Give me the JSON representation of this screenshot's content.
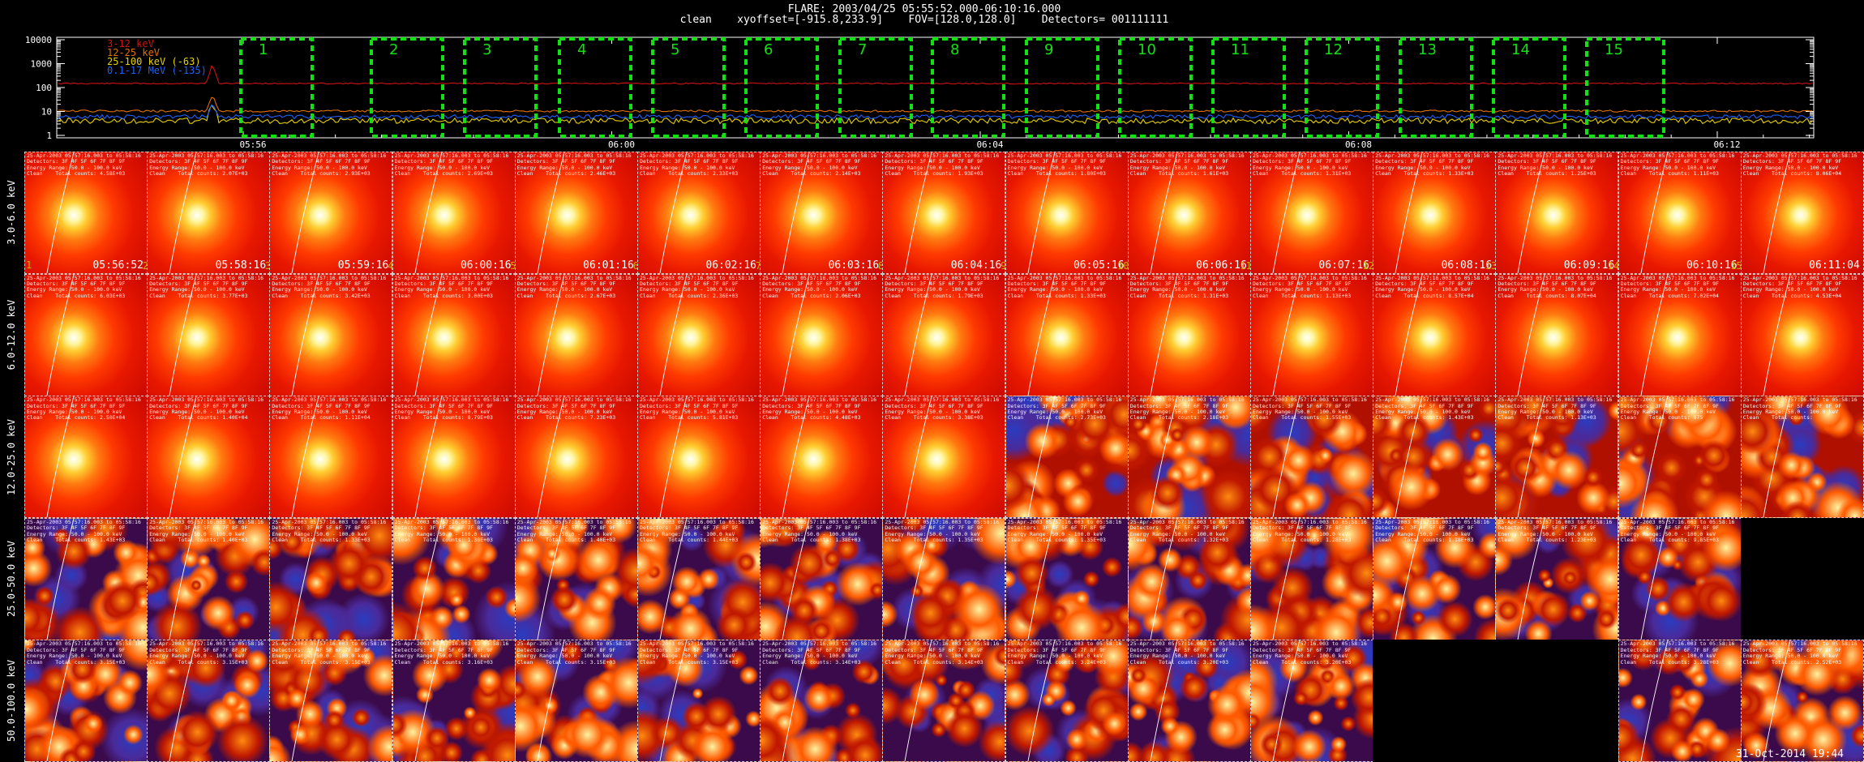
{
  "header": {
    "line1": "FLARE: 2003/04/25 05:55:52.000-06:10:16.000",
    "line2": "clean    xyoffset=[-915.8,233.9]    FOV=[128.0,128.0]    Detectors= 001111111"
  },
  "lightcurve": {
    "y_ticks": [
      "10000",
      "1000",
      "100",
      "10",
      "1"
    ],
    "x_ticks": [
      "05:56",
      "06:00",
      "06:04",
      "06:08",
      "06:12"
    ],
    "legend": [
      {
        "label": "3-12 keV",
        "color": "#d01010"
      },
      {
        "label": "12-25 keV",
        "color": "#e07000"
      },
      {
        "label": "25-100 keV (-63)",
        "color": "#e6d000"
      },
      {
        "label": "0.1-17 MeV (-135)",
        "color": "#2060ff"
      }
    ],
    "interval_labels": [
      "1",
      "2",
      "3",
      "4",
      "5",
      "6",
      "7",
      "8",
      "9",
      "10",
      "11",
      "12",
      "13",
      "14",
      "15"
    ],
    "box_color": "#12e012"
  },
  "row_labels": [
    "3.0-6.0 keV",
    "6.0-12.0 keV",
    "12.0-25.0 keV",
    "25.0-50.0 keV",
    "50.0-100.0 keV"
  ],
  "time_labels": [
    "05:56:52",
    "05:58:16",
    "05:59:16",
    "06:00:16",
    "06:01:16",
    "06:02:16",
    "06:03:16",
    "06:04:16",
    "06:05:16",
    "06:06:16",
    "06:07:16",
    "06:08:16",
    "06:09:16",
    "06:10:16",
    "06:11:04"
  ],
  "time_index": [
    "2",
    "3",
    "4",
    "5",
    "6",
    "7",
    "8",
    "9",
    "10",
    "11",
    "12",
    "13",
    "14",
    "15",
    ""
  ],
  "first_index": "1",
  "tile_header": {
    "line1": "25-Apr-2003 05:57:16.003 to 05:58:16",
    "line2": "Detectors: 3F 4F 5F 6F 7F 8F 9F",
    "line3": "Energy Range: 50.0 - 100.0 keV",
    "line4": "Clean    Total counts: 1.43E+03"
  },
  "counts": [
    [
      "4.58E+03",
      "2.07E+03",
      "2.93E+03",
      "2.69E+03",
      "2.46E+03",
      "2.33E+03",
      "2.14E+03",
      "1.93E+03",
      "1.80E+03",
      "1.61E+03",
      "1.31E+03",
      "1.33E+03",
      "1.25E+03",
      "1.11E+03",
      "8.06E+04"
    ],
    [
      "6.03E+03",
      "3.77E+03",
      "3.42E+03",
      "3.00E+03",
      "2.67E+03",
      "2.36E+03",
      "2.06E+03",
      "1.79E+03",
      "1.33E+03",
      "1.31E+03",
      "1.13E+03",
      "8.57E+04",
      "8.07E+04",
      "7.02E+04",
      "4.53E+04"
    ],
    [
      "2.50E+04",
      "1.40E+04",
      "1.11E+04",
      "8.79E+03",
      "7.23E+03",
      "5.81E+03",
      "4.48E+03",
      "3.38E+03",
      "2.73E+03",
      "2.18E+03",
      "1.55E+03",
      "1.43E+03",
      "1.13E+03",
      "875",
      ""
    ],
    [
      "1.43E+03",
      "1.40E+03",
      "1.33E+03",
      "1.38E+03",
      "1.40E+03",
      "1.44E+03",
      "1.38E+03",
      "1.35E+03",
      "1.35E+03",
      "1.32E+03",
      "1.28E+03",
      "1.18E+03",
      "1.23E+03",
      "9.85E+03",
      ""
    ],
    [
      "3.15E+03",
      "3.15E+03",
      "3.15E+03",
      "3.16E+03",
      "3.15E+03",
      "3.15E+03",
      "3.14E+03",
      "3.14E+03",
      "3.24E+03",
      "3.20E+03",
      "3.20E+03",
      "",
      "",
      "3.28E+03",
      "2.52E+03"
    ]
  ],
  "date_stamp": "31-Oct-2014 19:44"
}
